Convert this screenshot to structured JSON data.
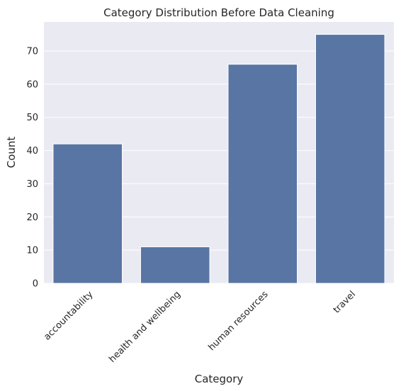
{
  "chart_data": {
    "type": "bar",
    "title": "Category Distribution Before Data Cleaning",
    "xlabel": "Category",
    "ylabel": "Count",
    "categories": [
      "accountability",
      "health and wellbeing",
      "human resources",
      "travel"
    ],
    "values": [
      42,
      11,
      66,
      75
    ],
    "ylim": [
      0,
      78.75
    ],
    "yticks": [
      "0",
      "10",
      "20",
      "30",
      "40",
      "50",
      "60",
      "70"
    ],
    "grid": true,
    "colors": {
      "bar": "#5875a4",
      "plot_background": "#eaeaf2",
      "grid": "#ffffff",
      "text": "#262626"
    }
  }
}
